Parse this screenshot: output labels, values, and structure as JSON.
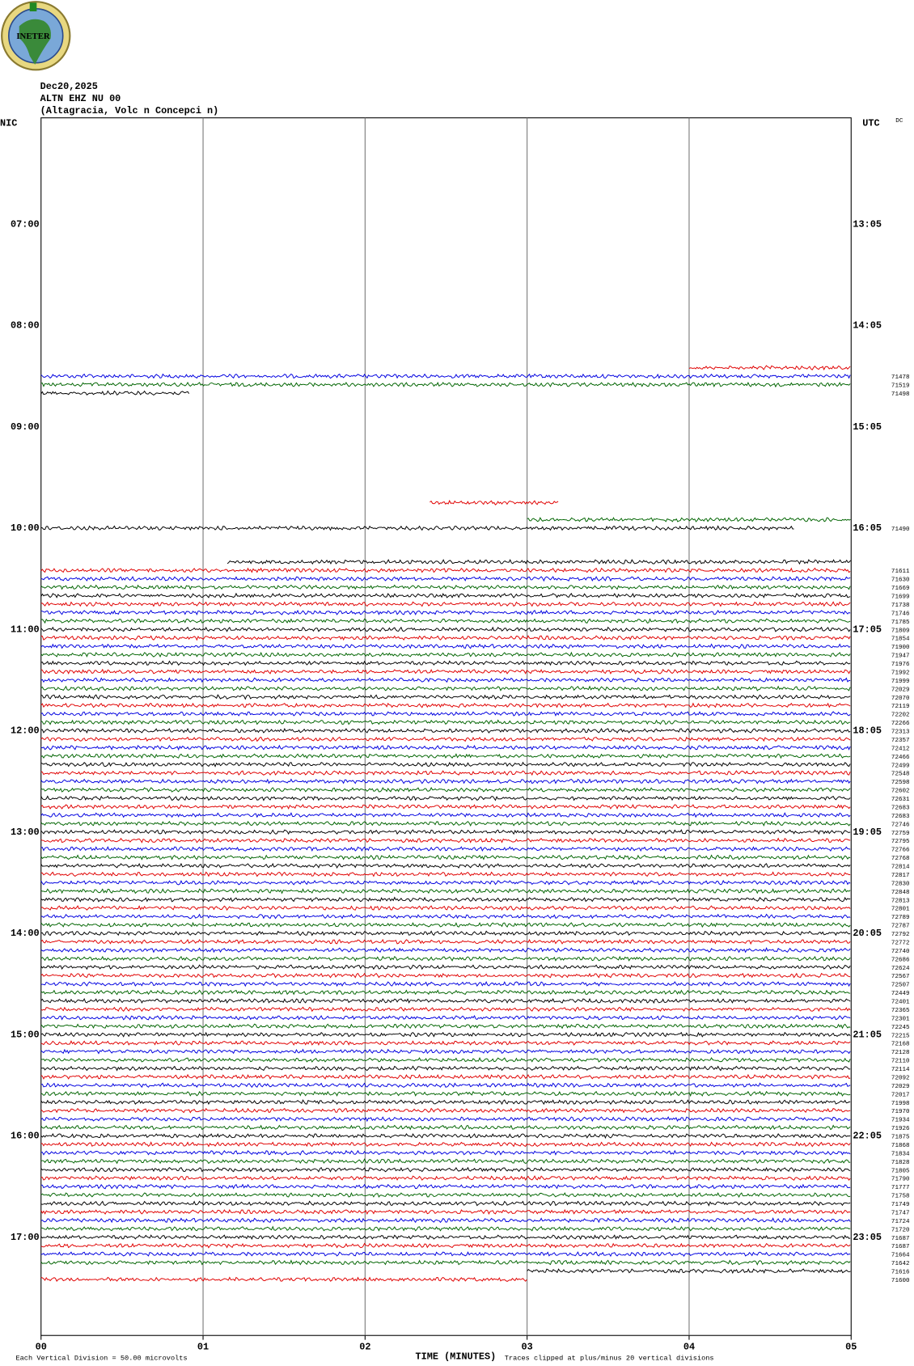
{
  "logo": "INETER",
  "chart_data": {
    "type": "helicorder",
    "title_lines": [
      "Dec20,2025",
      "ALTN EHZ NU 00",
      "(Altagracia, Volc  n Concepci  n)"
    ],
    "left_zone": "NIC",
    "right_zone": "UTC",
    "dc_header": "DC",
    "xlabel": "TIME (MINUTES)",
    "scale_note": "Each Vertical Division =   50.00 microvolts",
    "clip_note": "Traces clipped at plus/minus 20 vertical divisions",
    "xlim": [
      0,
      5
    ],
    "xticks": [
      {
        "value": 0,
        "label": "00"
      },
      {
        "value": 1,
        "label": "01"
      },
      {
        "value": 2,
        "label": "02"
      },
      {
        "value": 3,
        "label": "03"
      },
      {
        "value": 4,
        "label": "04"
      },
      {
        "value": 5,
        "label": "05"
      }
    ],
    "ylim": [
      5.95,
      17.97
    ],
    "yticks": [
      {
        "value": 7,
        "label": "07:00"
      },
      {
        "value": 8,
        "label": "08:00"
      },
      {
        "value": 9,
        "label": "09:00"
      },
      {
        "value": 10,
        "label": "10:00"
      },
      {
        "value": 11,
        "label": "11:00"
      },
      {
        "value": 12,
        "label": "12:00"
      },
      {
        "value": 13,
        "label": "13:00"
      },
      {
        "value": 14,
        "label": "14:00"
      },
      {
        "value": 15,
        "label": "15:00"
      },
      {
        "value": 16,
        "label": "16:00"
      },
      {
        "value": 17,
        "label": "17:00"
      }
    ],
    "y2ticks": [
      {
        "value": 7,
        "label": "13:05"
      },
      {
        "value": 8,
        "label": "14:05"
      },
      {
        "value": 9,
        "label": "15:05"
      },
      {
        "value": 10,
        "label": "16:05"
      },
      {
        "value": 11,
        "label": "17:05"
      },
      {
        "value": 12,
        "label": "18:05"
      },
      {
        "value": 13,
        "label": "19:05"
      },
      {
        "value": 14,
        "label": "20:05"
      },
      {
        "value": 15,
        "label": "21:05"
      },
      {
        "value": 16,
        "label": "22:05"
      },
      {
        "value": 17,
        "label": "23:05"
      }
    ],
    "colors": [
      "#000000",
      "#e00000",
      "#0000e0",
      "#006400"
    ],
    "grid": true,
    "rows": [
      null,
      null,
      null,
      null,
      null,
      null,
      null,
      null,
      null,
      null,
      null,
      null,
      null,
      null,
      null,
      null,
      null,
      null,
      null,
      null,
      null,
      null,
      null,
      null,
      null,
      null,
      null,
      null,
      null,
      {
        "start": 4,
        "end": 5
      },
      {
        "dc": 71478,
        "start": 0,
        "end": 5
      },
      {
        "dc": 71519,
        "start": 0,
        "end": 5
      },
      {
        "dc": 71498,
        "start": 0,
        "end": 0.92
      },
      null,
      null,
      null,
      null,
      null,
      null,
      null,
      null,
      null,
      null,
      null,
      null,
      {
        "start": 2.4,
        "end": 3.2
      },
      null,
      {
        "start": 3,
        "end": 5
      },
      {
        "dc": 71490,
        "start": 0,
        "end": 4.65
      },
      null,
      null,
      null,
      {
        "start": 1.15,
        "end": 5
      },
      {
        "dc": 71611,
        "start": 0,
        "end": 5
      },
      {
        "dc": 71630,
        "start": 0,
        "end": 5
      },
      {
        "dc": 71669,
        "start": 0,
        "end": 5
      },
      {
        "dc": 71699,
        "start": 0,
        "end": 5
      },
      {
        "dc": 71738,
        "start": 0,
        "end": 5
      },
      {
        "dc": 71746,
        "start": 0,
        "end": 5
      },
      {
        "dc": 71785,
        "start": 0,
        "end": 5
      },
      {
        "dc": 71809,
        "start": 0,
        "end": 5
      },
      {
        "dc": 71854,
        "start": 0,
        "end": 5
      },
      {
        "dc": 71900,
        "start": 0,
        "end": 5
      },
      {
        "dc": 71947,
        "start": 0,
        "end": 5
      },
      {
        "dc": 71976,
        "start": 0,
        "end": 5
      },
      {
        "dc": 71992,
        "start": 0,
        "end": 5
      },
      {
        "dc": 71999,
        "start": 0,
        "end": 5
      },
      {
        "dc": 72029,
        "start": 0,
        "end": 5
      },
      {
        "dc": 72070,
        "start": 0,
        "end": 5
      },
      {
        "dc": 72119,
        "start": 0,
        "end": 5
      },
      {
        "dc": 72202,
        "start": 0,
        "end": 5
      },
      {
        "dc": 72266,
        "start": 0,
        "end": 5
      },
      {
        "dc": 72313,
        "start": 0,
        "end": 5
      },
      {
        "dc": 72357,
        "start": 0,
        "end": 5
      },
      {
        "dc": 72412,
        "start": 0,
        "end": 5
      },
      {
        "dc": 72466,
        "start": 0,
        "end": 5
      },
      {
        "dc": 72499,
        "start": 0,
        "end": 5
      },
      {
        "dc": 72548,
        "start": 0,
        "end": 5
      },
      {
        "dc": 72598,
        "start": 0,
        "end": 5
      },
      {
        "dc": 72602,
        "start": 0,
        "end": 5
      },
      {
        "dc": 72631,
        "start": 0,
        "end": 5
      },
      {
        "dc": 72683,
        "start": 0,
        "end": 5
      },
      {
        "dc": 72683,
        "start": 0,
        "end": 5
      },
      {
        "dc": 72746,
        "start": 0,
        "end": 5
      },
      {
        "dc": 72759,
        "start": 0,
        "end": 5
      },
      {
        "dc": 72795,
        "start": 0,
        "end": 5
      },
      {
        "dc": 72766,
        "start": 0,
        "end": 5
      },
      {
        "dc": 72768,
        "start": 0,
        "end": 5
      },
      {
        "dc": 72814,
        "start": 0,
        "end": 5
      },
      {
        "dc": 72817,
        "start": 0,
        "end": 5
      },
      {
        "dc": 72830,
        "start": 0,
        "end": 5
      },
      {
        "dc": 72848,
        "start": 0,
        "end": 5
      },
      {
        "dc": 72813,
        "start": 0,
        "end": 5
      },
      {
        "dc": 72801,
        "start": 0,
        "end": 5
      },
      {
        "dc": 72789,
        "start": 0,
        "end": 5
      },
      {
        "dc": 72787,
        "start": 0,
        "end": 5
      },
      {
        "dc": 72792,
        "start": 0,
        "end": 5
      },
      {
        "dc": 72772,
        "start": 0,
        "end": 5
      },
      {
        "dc": 72740,
        "start": 0,
        "end": 5
      },
      {
        "dc": 72686,
        "start": 0,
        "end": 5
      },
      {
        "dc": 72624,
        "start": 0,
        "end": 5
      },
      {
        "dc": 72567,
        "start": 0,
        "end": 5
      },
      {
        "dc": 72507,
        "start": 0,
        "end": 5
      },
      {
        "dc": 72449,
        "start": 0,
        "end": 5
      },
      {
        "dc": 72401,
        "start": 0,
        "end": 5
      },
      {
        "dc": 72365,
        "start": 0,
        "end": 5
      },
      {
        "dc": 72301,
        "start": 0,
        "end": 5
      },
      {
        "dc": 72245,
        "start": 0,
        "end": 5
      },
      {
        "dc": 72215,
        "start": 0,
        "end": 5
      },
      {
        "dc": 72168,
        "start": 0,
        "end": 5
      },
      {
        "dc": 72128,
        "start": 0,
        "end": 5
      },
      {
        "dc": 72110,
        "start": 0,
        "end": 5
      },
      {
        "dc": 72114,
        "start": 0,
        "end": 5
      },
      {
        "dc": 72092,
        "start": 0,
        "end": 5
      },
      {
        "dc": 72029,
        "start": 0,
        "end": 5
      },
      {
        "dc": 72017,
        "start": 0,
        "end": 5
      },
      {
        "dc": 71998,
        "start": 0,
        "end": 5
      },
      {
        "dc": 71970,
        "start": 0,
        "end": 5
      },
      {
        "dc": 71934,
        "start": 0,
        "end": 5
      },
      {
        "dc": 71926,
        "start": 0,
        "end": 5
      },
      {
        "dc": 71875,
        "start": 0,
        "end": 5
      },
      {
        "dc": 71868,
        "start": 0,
        "end": 5
      },
      {
        "dc": 71834,
        "start": 0,
        "end": 5
      },
      {
        "dc": 71828,
        "start": 0,
        "end": 5
      },
      {
        "dc": 71805,
        "start": 0,
        "end": 5
      },
      {
        "dc": 71790,
        "start": 0,
        "end": 5
      },
      {
        "dc": 71777,
        "start": 0,
        "end": 5
      },
      {
        "dc": 71758,
        "start": 0,
        "end": 5
      },
      {
        "dc": 71749,
        "start": 0,
        "end": 5
      },
      {
        "dc": 71747,
        "start": 0,
        "end": 5
      },
      {
        "dc": 71724,
        "start": 0,
        "end": 5
      },
      {
        "dc": 71720,
        "start": 0,
        "end": 5
      },
      {
        "dc": 71687,
        "start": 0,
        "end": 5
      },
      {
        "dc": 71687,
        "start": 0,
        "end": 5
      },
      {
        "dc": 71664,
        "start": 0,
        "end": 5
      },
      {
        "dc": 71642,
        "start": 0,
        "end": 5
      },
      {
        "dc": 71616,
        "start": 3,
        "end": 5
      },
      {
        "dc": 71600,
        "start": 0,
        "end": 3
      }
    ]
  }
}
